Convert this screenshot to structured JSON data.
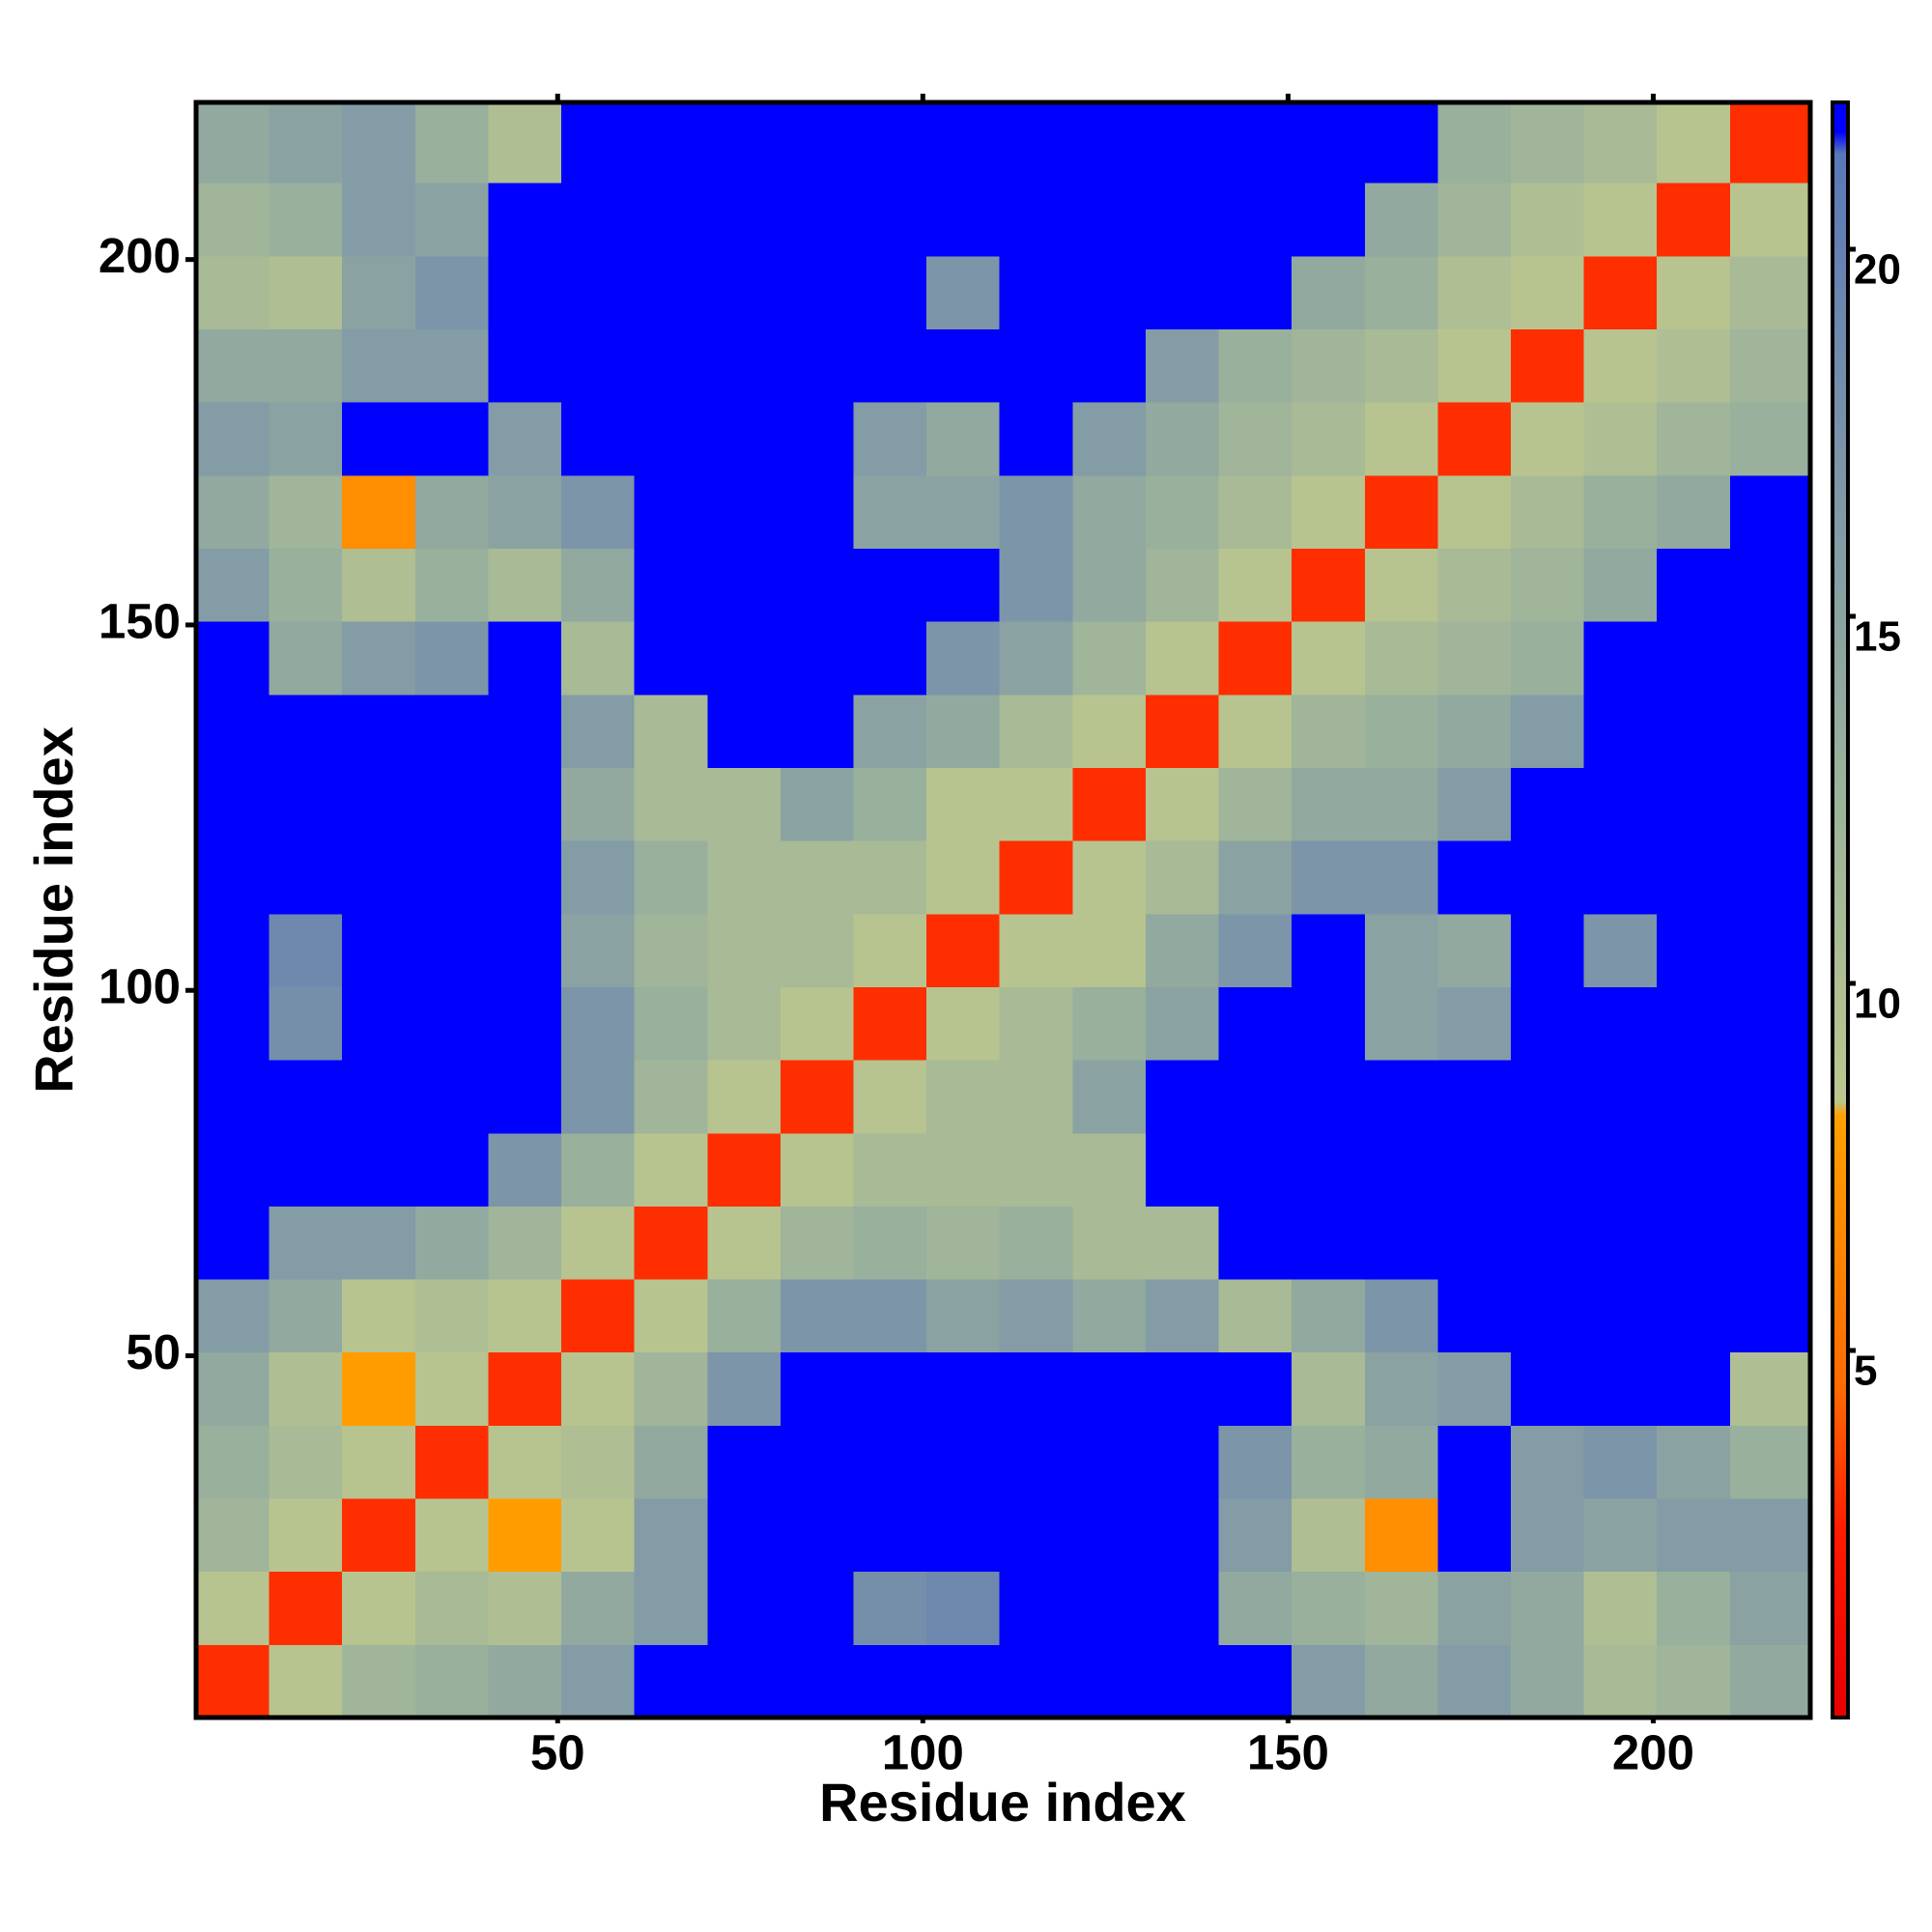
{
  "chart_data": {
    "type": "heatmap",
    "x_label": "Residue index",
    "y_label": "Residue index",
    "x_bins": [
      0.5,
      10.5,
      20.5,
      30.5,
      40.5,
      50.5,
      60.5,
      70.5,
      80.5,
      90.5,
      100.5,
      110.5,
      120.5,
      130.5,
      140.5,
      150.5,
      160.5,
      170.5,
      180.5,
      190.5,
      200.5,
      210.5,
      221.5
    ],
    "y_bins": [
      0.5,
      10.5,
      20.5,
      30.5,
      40.5,
      50.5,
      60.5,
      70.5,
      80.5,
      90.5,
      100.5,
      110.5,
      120.5,
      130.5,
      140.5,
      150.5,
      160.5,
      170.5,
      180.5,
      190.5,
      200.5,
      210.5,
      221.5
    ],
    "z": [
      [
        3,
        9,
        12,
        13,
        14,
        16,
        22,
        22,
        22,
        22,
        22,
        22,
        22,
        22,
        22,
        16,
        14,
        16,
        14,
        11,
        12,
        14
      ],
      [
        9,
        3,
        9,
        11,
        10,
        14,
        16,
        22,
        22,
        18,
        19,
        22,
        22,
        22,
        14,
        13,
        12,
        15,
        14,
        10,
        13,
        15
      ],
      [
        12,
        9,
        3,
        9,
        8,
        9,
        16,
        22,
        22,
        22,
        22,
        22,
        22,
        22,
        16,
        10,
        7,
        22,
        16,
        15,
        16,
        16
      ],
      [
        13,
        11,
        9,
        3,
        9,
        10,
        14,
        22,
        22,
        22,
        22,
        22,
        22,
        22,
        17,
        13,
        14,
        22,
        16,
        17,
        15,
        13
      ],
      [
        14,
        10,
        8,
        9,
        3,
        9,
        12,
        17,
        22,
        22,
        22,
        22,
        22,
        22,
        22,
        11,
        15,
        16,
        22,
        22,
        22,
        10
      ],
      [
        16,
        14,
        9,
        10,
        9,
        3,
        9,
        13,
        17,
        17,
        15,
        16,
        14,
        16,
        11,
        14,
        17,
        22,
        22,
        22,
        22,
        22
      ],
      [
        22,
        16,
        16,
        14,
        12,
        9,
        3,
        9,
        12,
        13,
        12,
        13,
        11,
        11,
        22,
        22,
        22,
        22,
        22,
        22,
        22,
        22
      ],
      [
        22,
        22,
        22,
        22,
        17,
        13,
        9,
        3,
        9,
        11,
        11,
        11,
        11,
        22,
        22,
        22,
        22,
        22,
        22,
        22,
        22,
        22
      ],
      [
        22,
        22,
        22,
        22,
        22,
        17,
        12,
        9,
        3,
        9,
        11,
        11,
        15,
        22,
        22,
        22,
        22,
        22,
        22,
        22,
        22,
        22
      ],
      [
        22,
        18,
        22,
        22,
        22,
        17,
        13,
        11,
        9,
        3,
        9,
        11,
        13,
        15,
        22,
        22,
        15,
        16,
        22,
        22,
        22,
        22
      ],
      [
        22,
        19,
        22,
        22,
        22,
        15,
        12,
        11,
        11,
        9,
        3,
        9,
        9,
        14,
        17,
        22,
        15,
        14,
        22,
        17,
        22,
        22
      ],
      [
        22,
        22,
        22,
        22,
        22,
        16,
        13,
        11,
        11,
        11,
        9,
        3,
        9,
        11,
        15,
        17,
        17,
        22,
        22,
        22,
        22,
        22
      ],
      [
        22,
        22,
        22,
        22,
        22,
        14,
        11,
        11,
        15,
        13,
        9,
        9,
        3,
        9,
        12,
        14,
        14,
        16,
        22,
        22,
        22,
        22
      ],
      [
        22,
        22,
        22,
        22,
        22,
        16,
        11,
        22,
        22,
        15,
        14,
        11,
        9,
        3,
        9,
        12,
        13,
        14,
        16,
        22,
        22,
        22
      ],
      [
        22,
        14,
        16,
        17,
        22,
        11,
        22,
        22,
        22,
        22,
        17,
        15,
        12,
        9,
        3,
        9,
        11,
        12,
        13,
        22,
        22,
        22
      ],
      [
        16,
        13,
        10,
        13,
        11,
        14,
        22,
        22,
        22,
        22,
        22,
        17,
        14,
        12,
        9,
        3,
        9,
        11,
        12,
        14,
        22,
        22
      ],
      [
        14,
        12,
        7,
        14,
        15,
        17,
        22,
        22,
        22,
        15,
        15,
        17,
        14,
        13,
        11,
        9,
        3,
        9,
        11,
        13,
        14,
        22
      ],
      [
        16,
        15,
        22,
        22,
        16,
        22,
        22,
        22,
        22,
        16,
        14,
        22,
        16,
        14,
        12,
        11,
        9,
        3,
        9,
        10,
        12,
        13
      ],
      [
        14,
        14,
        16,
        16,
        22,
        22,
        22,
        22,
        22,
        22,
        22,
        22,
        22,
        16,
        13,
        12,
        11,
        9,
        3,
        9,
        10,
        12
      ],
      [
        11,
        10,
        15,
        17,
        22,
        22,
        22,
        22,
        22,
        22,
        17,
        22,
        22,
        22,
        22,
        14,
        13,
        10,
        9,
        3,
        9,
        11
      ],
      [
        12,
        13,
        16,
        15,
        22,
        22,
        22,
        22,
        22,
        22,
        22,
        22,
        22,
        22,
        22,
        22,
        14,
        12,
        10,
        9,
        3,
        9
      ],
      [
        14,
        15,
        16,
        13,
        10,
        22,
        22,
        22,
        22,
        22,
        22,
        22,
        22,
        22,
        22,
        22,
        22,
        13,
        12,
        11,
        9,
        3
      ]
    ],
    "xlim": [
      0.5,
      221.5
    ],
    "ylim": [
      0.5,
      221.5
    ],
    "xticks": [
      50,
      100,
      150,
      200
    ],
    "yticks": [
      50,
      100,
      150,
      200
    ],
    "colorbar": {
      "lim": [
        0,
        22
      ],
      "ticks": [
        5,
        10,
        15,
        20
      ],
      "colorscale": [
        [
          0,
          "#e60000"
        ],
        [
          2.5,
          "#ff1a00"
        ],
        [
          4.5,
          "#ff6a00"
        ],
        [
          8.2,
          "#ffa000"
        ],
        [
          8.4,
          "#bcc78e"
        ],
        [
          13,
          "#98b09c"
        ],
        [
          19,
          "#6e88ae"
        ],
        [
          21.3,
          "#5a78b8"
        ],
        [
          21.6,
          "#0000ff"
        ],
        [
          22,
          "#0000ff"
        ]
      ]
    }
  }
}
